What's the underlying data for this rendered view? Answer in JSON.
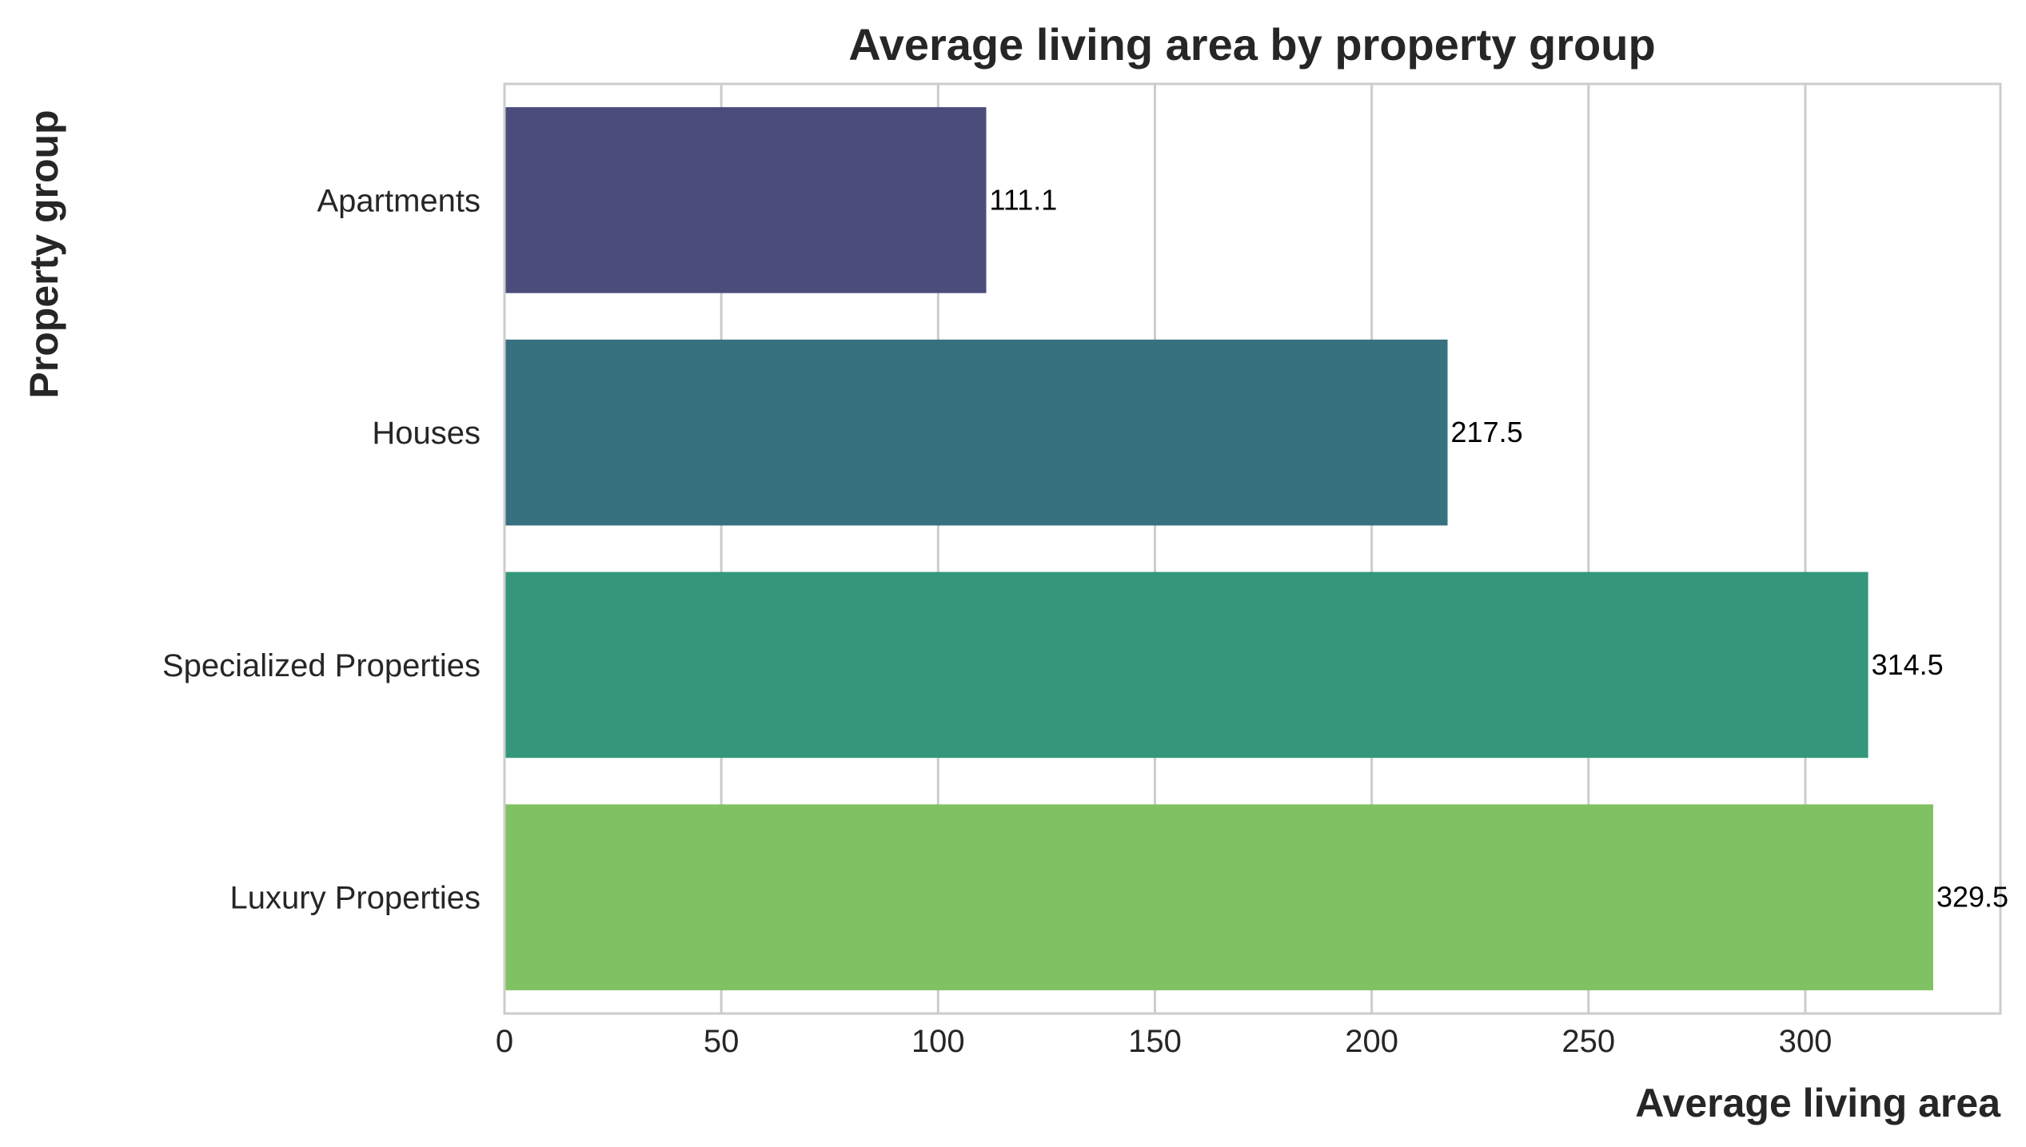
{
  "chart_data": {
    "type": "bar",
    "orientation": "horizontal",
    "title": "Average living area by property group",
    "xlabel": "Average living area",
    "ylabel": "Property group",
    "categories": [
      "Apartments",
      "Houses",
      "Specialized Properties",
      "Luxury Properties"
    ],
    "values": [
      111.1,
      217.5,
      314.5,
      329.5
    ],
    "data_labels": [
      "111.1",
      "217.5",
      "314.5",
      "329.5"
    ],
    "colors": [
      "#4b4c7c",
      "#37717f",
      "#34977b",
      "#80c263"
    ],
    "xlim": [
      0,
      345
    ],
    "xticks": [
      0,
      50,
      100,
      150,
      200,
      250,
      300
    ],
    "xtick_labels": [
      "0",
      "50",
      "100",
      "150",
      "200",
      "250",
      "300"
    ],
    "grid": true,
    "legend": false
  }
}
